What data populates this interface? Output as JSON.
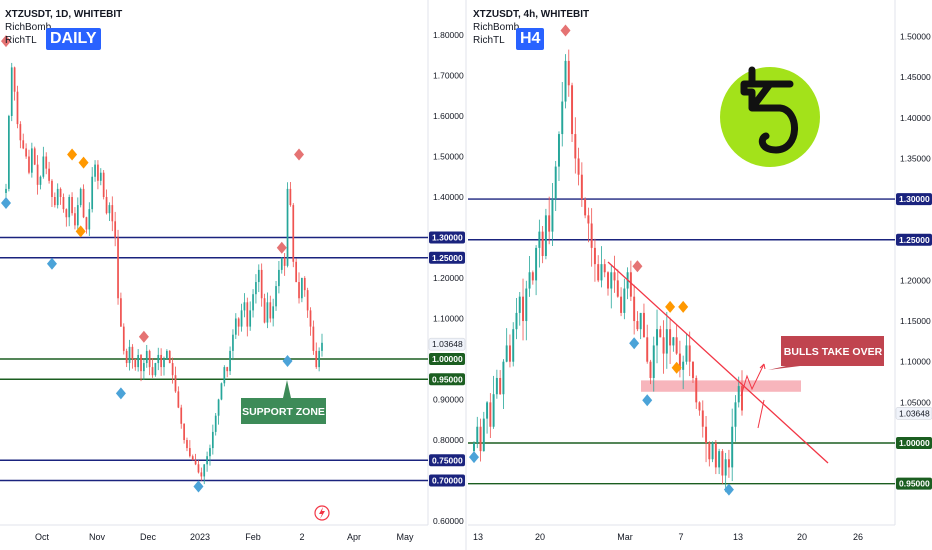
{
  "colors": {
    "candle_up": "#26a69a",
    "candle_down": "#ef5350",
    "blue_level": "#1a237e",
    "green_level": "#1b5e20",
    "support_label": "#3d8b58",
    "bulls_label": "#c0444f",
    "trend_line": "#f23645",
    "zone": "#f6a8b0",
    "badge": "#2962ff",
    "logo_bg": "#a3e21a",
    "marker_red": "#e57373",
    "marker_orange": "#ff9800",
    "marker_blue": "#4ba3d8"
  },
  "panels": [
    {
      "header": {
        "symbol": "XTZUSDT, 1D, WHITEBIT",
        "ind1": "RichBomb",
        "ind2": "RichTL"
      },
      "badge": "DAILY"
    },
    {
      "header": {
        "symbol": "XTZUSDT, 4h, WHITEBIT",
        "ind1": "RichBomb",
        "ind2": "RichTL"
      },
      "badge": "H4"
    }
  ],
  "chart_data": [
    {
      "type": "candlestick",
      "timeframe": "1D",
      "ylim": [
        0.6,
        1.82
      ],
      "y_ticks": [
        "1.80000",
        "1.70000",
        "1.60000",
        "1.50000",
        "1.40000",
        "1.30000",
        "1.20000",
        "1.10000",
        "1.00000",
        "0.90000",
        "0.80000",
        "0.70000",
        "0.60000"
      ],
      "x_ticks": [
        "Oct",
        "Nov",
        "Dec",
        "2023",
        "Feb",
        "2",
        "Apr",
        "May"
      ],
      "levels": [
        {
          "value": 1.3,
          "label": "1.30000",
          "color": "blue"
        },
        {
          "value": 1.25,
          "label": "1.25000",
          "color": "blue"
        },
        {
          "value": 1.0,
          "label": "1.00000",
          "color": "green"
        },
        {
          "value": 0.95,
          "label": "0.95000",
          "color": "green"
        },
        {
          "value": 0.75,
          "label": "0.75000",
          "color": "blue"
        },
        {
          "value": 0.7,
          "label": "0.70000",
          "color": "blue"
        }
      ],
      "last_price": "1.03648",
      "annotation": "SUPPORT ZONE",
      "close_path": [
        1.42,
        1.6,
        1.72,
        1.66,
        1.58,
        1.54,
        1.52,
        1.5,
        1.46,
        1.52,
        1.48,
        1.43,
        1.45,
        1.5,
        1.47,
        1.44,
        1.4,
        1.38,
        1.42,
        1.4,
        1.37,
        1.35,
        1.4,
        1.36,
        1.33,
        1.38,
        1.42,
        1.35,
        1.32,
        1.37,
        1.45,
        1.48,
        1.44,
        1.46,
        1.4,
        1.36,
        1.38,
        1.34,
        1.3,
        1.15,
        1.08,
        1.02,
        0.99,
        1.03,
        1.0,
        0.98,
        1.01,
        0.97,
        0.99,
        1.02,
        0.98,
        0.96,
        0.99,
        1.01,
        0.98,
        1.0,
        1.02,
        0.99,
        0.96,
        0.92,
        0.88,
        0.84,
        0.8,
        0.78,
        0.76,
        0.75,
        0.74,
        0.72,
        0.71,
        0.74,
        0.76,
        0.78,
        0.82,
        0.86,
        0.9,
        0.94,
        0.98,
        0.97,
        1.02,
        1.06,
        1.1,
        1.08,
        1.12,
        1.14,
        1.08,
        1.12,
        1.16,
        1.19,
        1.22,
        1.15,
        1.09,
        1.14,
        1.1,
        1.13,
        1.18,
        1.22,
        1.25,
        1.23,
        1.42,
        1.38,
        1.24,
        1.19,
        1.15,
        1.2,
        1.17,
        1.12,
        1.08,
        1.02,
        0.98,
        1.02,
        1.04
      ],
      "markers": [
        {
          "kind": "red",
          "idx": 0,
          "price": 1.77,
          "pos": "above"
        },
        {
          "kind": "blue",
          "idx": 0,
          "price": 1.4,
          "pos": "below"
        },
        {
          "kind": "orange",
          "idx": 23,
          "price": 1.49,
          "pos": "above"
        },
        {
          "kind": "orange",
          "idx": 27,
          "price": 1.47,
          "pos": "above"
        },
        {
          "kind": "orange",
          "idx": 26,
          "price": 1.33,
          "pos": "below"
        },
        {
          "kind": "blue",
          "idx": 16,
          "price": 1.25,
          "pos": "below"
        },
        {
          "kind": "red",
          "idx": 48,
          "price": 1.04,
          "pos": "above"
        },
        {
          "kind": "blue",
          "idx": 40,
          "price": 0.93,
          "pos": "below"
        },
        {
          "kind": "blue",
          "idx": 67,
          "price": 0.7,
          "pos": "below"
        },
        {
          "kind": "red",
          "idx": 96,
          "price": 1.26,
          "pos": "above"
        },
        {
          "kind": "red",
          "idx": 102,
          "price": 1.49,
          "pos": "above"
        },
        {
          "kind": "blue",
          "idx": 98,
          "price": 1.01,
          "pos": "below"
        }
      ]
    },
    {
      "type": "candlestick",
      "timeframe": "4h",
      "ylim": [
        0.9,
        1.52
      ],
      "y_ticks": [
        "1.50000",
        "1.45000",
        "1.40000",
        "1.35000",
        "1.30000",
        "1.25000",
        "1.20000",
        "1.15000",
        "1.10000",
        "1.05000",
        "1.00000",
        "0.95000"
      ],
      "x_ticks": [
        "13",
        "20",
        "Mar",
        "7",
        "13",
        "20",
        "26"
      ],
      "levels": [
        {
          "value": 1.3,
          "label": "1.30000",
          "color": "blue"
        },
        {
          "value": 1.25,
          "label": "1.25000",
          "color": "blue"
        },
        {
          "value": 1.0,
          "label": "1.00000",
          "color": "green"
        },
        {
          "value": 0.95,
          "label": "0.95000",
          "color": "green"
        }
      ],
      "last_price": "1.03648",
      "annotation": "BULLS TAKE OVER",
      "zone": [
        1.063,
        1.077
      ],
      "close_path": [
        1.0,
        1.02,
        0.99,
        1.03,
        1.05,
        1.02,
        1.06,
        1.08,
        1.06,
        1.1,
        1.12,
        1.1,
        1.14,
        1.16,
        1.18,
        1.15,
        1.19,
        1.21,
        1.2,
        1.24,
        1.26,
        1.23,
        1.28,
        1.26,
        1.3,
        1.34,
        1.38,
        1.42,
        1.47,
        1.44,
        1.38,
        1.35,
        1.33,
        1.3,
        1.28,
        1.27,
        1.24,
        1.22,
        1.2,
        1.22,
        1.21,
        1.19,
        1.21,
        1.2,
        1.18,
        1.16,
        1.19,
        1.21,
        1.18,
        1.15,
        1.14,
        1.16,
        1.13,
        1.1,
        1.08,
        1.12,
        1.14,
        1.13,
        1.11,
        1.14,
        1.12,
        1.13,
        1.11,
        1.09,
        1.1,
        1.12,
        1.1,
        1.08,
        1.05,
        1.04,
        1.02,
        1.0,
        0.98,
        1.0,
        0.97,
        0.99,
        0.96,
        0.98,
        0.97,
        1.02,
        1.05,
        1.07,
        1.04
      ],
      "markers": [
        {
          "kind": "red",
          "idx": 28,
          "price": 1.5,
          "pos": "above"
        },
        {
          "kind": "blue",
          "idx": 0,
          "price": 0.99,
          "pos": "below"
        },
        {
          "kind": "blue",
          "idx": 49,
          "price": 1.13,
          "pos": "below"
        },
        {
          "kind": "blue",
          "idx": 53,
          "price": 1.06,
          "pos": "below"
        },
        {
          "kind": "red",
          "idx": 50,
          "price": 1.21,
          "pos": "above"
        },
        {
          "kind": "orange",
          "idx": 60,
          "price": 1.16,
          "pos": "above"
        },
        {
          "kind": "orange",
          "idx": 64,
          "price": 1.16,
          "pos": "above"
        },
        {
          "kind": "orange",
          "idx": 62,
          "price": 1.1,
          "pos": "below"
        },
        {
          "kind": "blue",
          "idx": 78,
          "price": 0.95,
          "pos": "below"
        }
      ]
    }
  ]
}
